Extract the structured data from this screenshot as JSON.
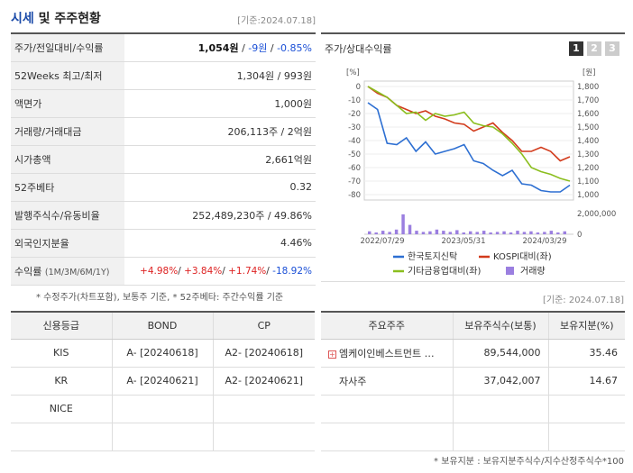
{
  "header": {
    "title_main": "시세",
    "title_rest": " 및 주주현황",
    "date": "[기준:2024.07.18]"
  },
  "info": {
    "price_label": "주가/전일대비/수익률",
    "price": "1,054원",
    "sep": " / ",
    "change": "-9원",
    "change_pct": "-0.85%",
    "week52_label": "52Weeks 최고/최저",
    "week52_value": "1,304원 / 993원",
    "par_label": "액면가",
    "par_value": "1,000원",
    "volume_label": "거래량/거래대금",
    "volume_value": "206,113주 / 2억원",
    "mcap_label": "시가총액",
    "mcap_value": "2,661억원",
    "beta_label": "52주베타",
    "beta_value": "0.32",
    "shares_label": "발행주식수/유동비율",
    "shares_value": "252,489,230주 / 49.86%",
    "foreign_label": "외국인지분율",
    "foreign_value": "4.46%",
    "return_label": "수익률",
    "return_period": "(1M/3M/6M/1Y)",
    "r1": "+4.98%",
    "r2": "+3.84%",
    "r3": "+1.74%",
    "r4": "-18.92%",
    "slash": "/ "
  },
  "chart": {
    "title": "주가/상대수익률",
    "pages": [
      "1",
      "2",
      "3"
    ],
    "left_unit": "[%]",
    "right_unit": "[원]",
    "vol_unit": "2,000,000",
    "vol_zero": "0",
    "x_ticks": [
      "2022/07/29",
      "2023/05/31",
      "2024/03/29"
    ],
    "legend": [
      "한국토지신탁",
      "KOSPI대비(좌)",
      "기타금융업대비(좌)",
      "거래량"
    ]
  },
  "chart_data": {
    "type": "line",
    "x_labels": [
      "2022/07/29",
      "2023/05/31",
      "2024/03/29"
    ],
    "left_axis": {
      "label": "[%]",
      "ylim": [
        -80,
        0
      ],
      "ticks": [
        0,
        -10,
        -20,
        -30,
        -40,
        -50,
        -60,
        -70,
        -80
      ]
    },
    "right_axis": {
      "label": "[원]",
      "ylim": [
        1000,
        1800
      ],
      "ticks": [
        1800,
        1700,
        1600,
        1500,
        1400,
        1300,
        1200,
        1100,
        1000
      ]
    },
    "series": [
      {
        "name": "한국토지신탁",
        "color": "#2d6fd2",
        "values": [
          -12,
          -17,
          -42,
          -43,
          -38,
          -48,
          -41,
          -50,
          -48,
          -46,
          -43,
          -55,
          -57,
          -62,
          -66,
          -62,
          -72,
          -73,
          -77,
          -78,
          -78,
          -73
        ]
      },
      {
        "name": "KOSPI대비(좌)",
        "color": "#d23b1c",
        "values": [
          0,
          -5,
          -8,
          -14,
          -17,
          -20,
          -18,
          -22,
          -24,
          -27,
          -28,
          -33,
          -30,
          -27,
          -34,
          -40,
          -48,
          -48,
          -45,
          -48,
          -55,
          -52
        ]
      },
      {
        "name": "기타금융업대비(좌)",
        "color": "#8bbe1e",
        "values": [
          0,
          -4,
          -8,
          -14,
          -20,
          -19,
          -25,
          -20,
          -22,
          -21,
          -19,
          -27,
          -29,
          -30,
          -35,
          -42,
          -50,
          -60,
          -63,
          -65,
          -68,
          -70
        ]
      }
    ],
    "volume": {
      "name": "거래량",
      "color": "#9b7fe0",
      "ylim": [
        0,
        2000000
      ],
      "values": [
        250000,
        150000,
        300000,
        200000,
        400000,
        1700000,
        800000,
        300000,
        200000,
        250000,
        400000,
        300000,
        200000,
        350000,
        150000,
        250000,
        200000,
        300000,
        150000,
        200000,
        250000,
        150000,
        300000,
        200000,
        250000,
        150000,
        200000,
        300000,
        150000,
        250000
      ]
    }
  },
  "notes": {
    "left": "* 수정주가(차트포함), 보통주 기준, * 52주베타: 주간수익률 기준",
    "right": "[기준: 2024.07.18]"
  },
  "credit": {
    "headers": [
      "신용등급",
      "BOND",
      "CP"
    ],
    "rows": [
      {
        "agency": "KIS",
        "bond": "A-  [20240618]",
        "cp": "A2-  [20240618]"
      },
      {
        "agency": "KR",
        "bond": "A-  [20240621]",
        "cp": "A2-  [20240621]"
      },
      {
        "agency": "NICE",
        "bond": "",
        "cp": ""
      },
      {
        "agency": "",
        "bond": "",
        "cp": ""
      }
    ]
  },
  "holders": {
    "headers": [
      "주요주주",
      "보유주식수(보통)",
      "보유지분(%)"
    ],
    "rows": [
      {
        "name": "엠케이인베스트먼트 …",
        "shares": "89,544,000",
        "pct": "35.46"
      },
      {
        "name": "자사주",
        "shares": "37,042,007",
        "pct": "14.67"
      },
      {
        "name": "",
        "shares": "",
        "pct": ""
      },
      {
        "name": "",
        "shares": "",
        "pct": ""
      }
    ]
  },
  "footnote": "* 보유지분 : 보유지분주식수/지수산정주식수*100"
}
